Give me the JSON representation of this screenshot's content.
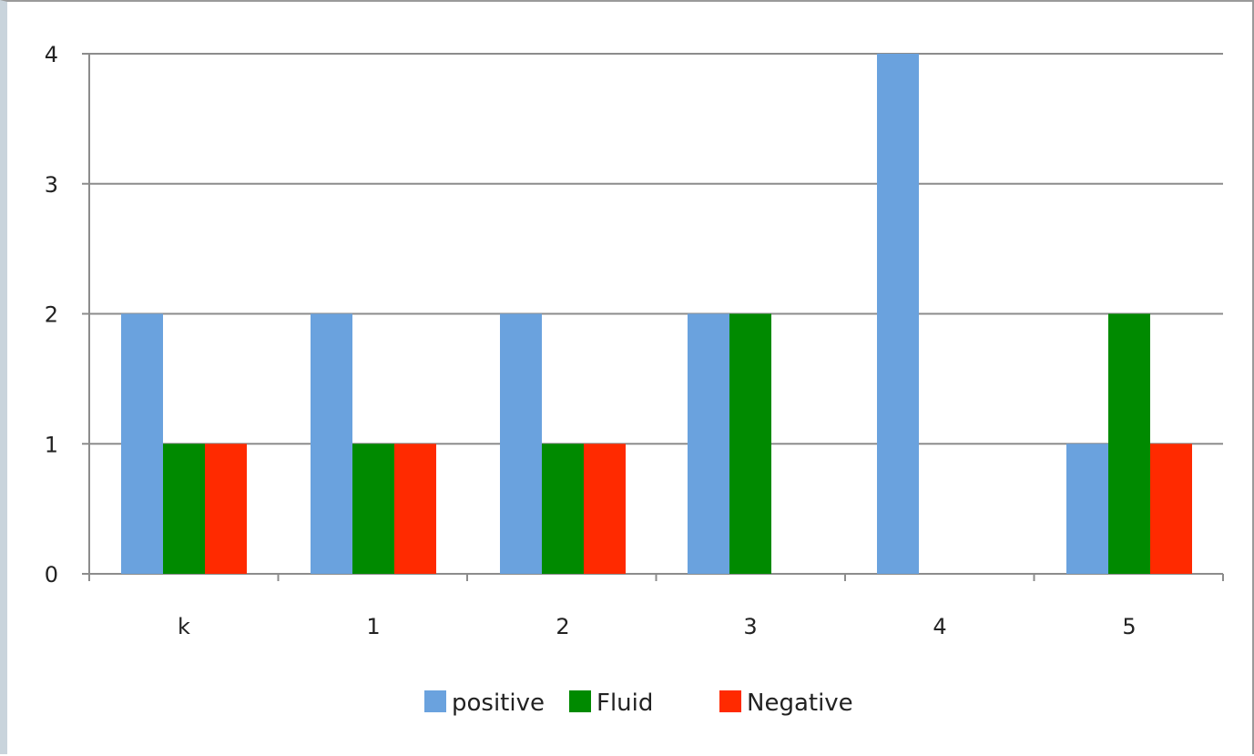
{
  "chart_data": {
    "type": "bar",
    "title": "",
    "xlabel": "",
    "ylabel": "",
    "categories": [
      "k",
      "1",
      "2",
      "3",
      "4",
      "5"
    ],
    "series": [
      {
        "name": "positive",
        "color": "#6aa2de",
        "values": [
          2,
          2,
          2,
          2,
          4,
          1
        ]
      },
      {
        "name": "Fluid",
        "color": "#008a00",
        "values": [
          1,
          1,
          1,
          2,
          0,
          2
        ]
      },
      {
        "name": "Negative",
        "color": "#ff2a00",
        "values": [
          1,
          1,
          1,
          0,
          0,
          1
        ]
      }
    ],
    "ylim": [
      0,
      4
    ],
    "yticks": [
      "0",
      "1",
      "2",
      "3",
      "4"
    ],
    "grid": true,
    "legend_position": "bottom"
  }
}
